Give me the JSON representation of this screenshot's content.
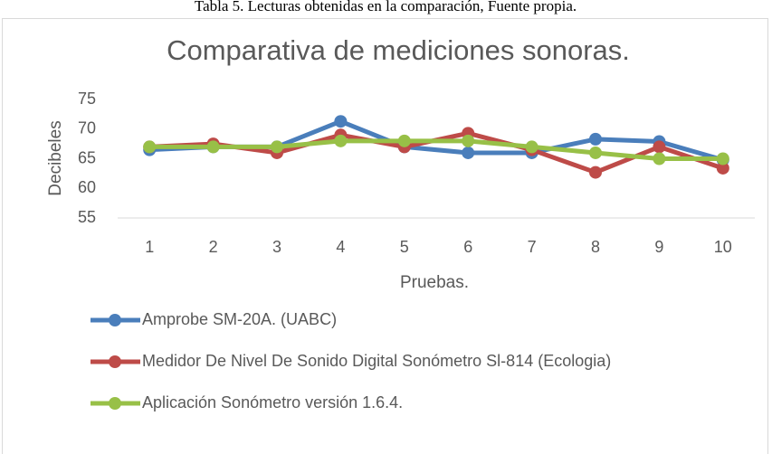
{
  "caption": "Tabla 5. Lecturas obtenidas en la comparación, Fuente propia.",
  "chart_data": {
    "type": "line",
    "title": "Comparativa de mediciones sonoras.",
    "x_label": "Pruebas.",
    "y_label": "Decibeles",
    "categories": [
      "1",
      "2",
      "3",
      "4",
      "5",
      "6",
      "7",
      "8",
      "9",
      "10"
    ],
    "series": [
      {
        "name": "Amprobe SM-20A. (UABC)",
        "color": "#4a7ebb",
        "values": [
          66.5,
          67,
          67,
          71.3,
          67,
          66,
          66,
          68.3,
          67.9,
          64.8
        ]
      },
      {
        "name": "Medidor De Nivel De Sonido Digital Sonómetro Sl-814 (Ecologia)",
        "color": "#be4b48",
        "values": [
          67,
          67.5,
          66,
          69,
          67,
          69.3,
          66.5,
          62.7,
          67,
          63.4
        ]
      },
      {
        "name": "Aplicación Sonómetro versión 1.6.4.",
        "color": "#98c047",
        "values": [
          67,
          67,
          67,
          68,
          68,
          68,
          67,
          66,
          65,
          65
        ]
      }
    ],
    "ylim": [
      55,
      75
    ],
    "yticks": [
      55,
      60,
      65,
      70,
      75
    ],
    "grid": false,
    "legend": "bottom"
  }
}
